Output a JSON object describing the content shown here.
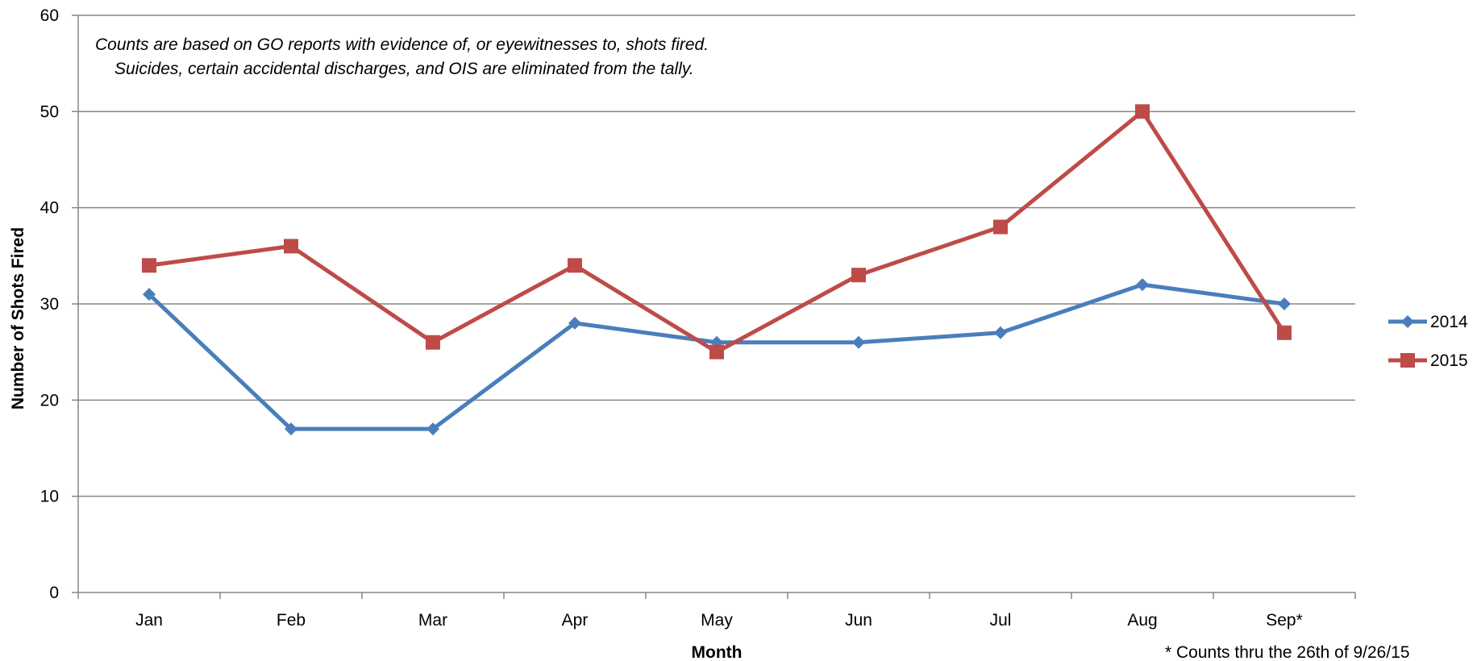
{
  "chart_data": {
    "type": "line",
    "categories": [
      "Jan",
      "Feb",
      "Mar",
      "Apr",
      "May",
      "Jun",
      "Jul",
      "Aug",
      "Sep*"
    ],
    "series": [
      {
        "name": "2014",
        "values": [
          31,
          17,
          17,
          28,
          26,
          26,
          27,
          32,
          30
        ],
        "color": "#4A7EBB",
        "marker": "diamond"
      },
      {
        "name": "2015",
        "values": [
          34,
          36,
          26,
          34,
          25,
          33,
          38,
          50,
          27
        ],
        "color": "#BE4B48",
        "marker": "square"
      }
    ],
    "xlabel": "Month",
    "ylabel": "Number of Shots Fired",
    "ylim": [
      0,
      60
    ],
    "yticks": [
      0,
      10,
      20,
      30,
      40,
      50,
      60
    ],
    "grid": true,
    "legend_position": "right",
    "annotation": {
      "line1": "Counts are based on GO reports with evidence of, or eyewitnesses to, shots fired.",
      "line2": "Suicides, certain accidental discharges, and OIS are eliminated from the tally."
    },
    "footnote": "* Counts thru the 26th of 9/26/15"
  }
}
